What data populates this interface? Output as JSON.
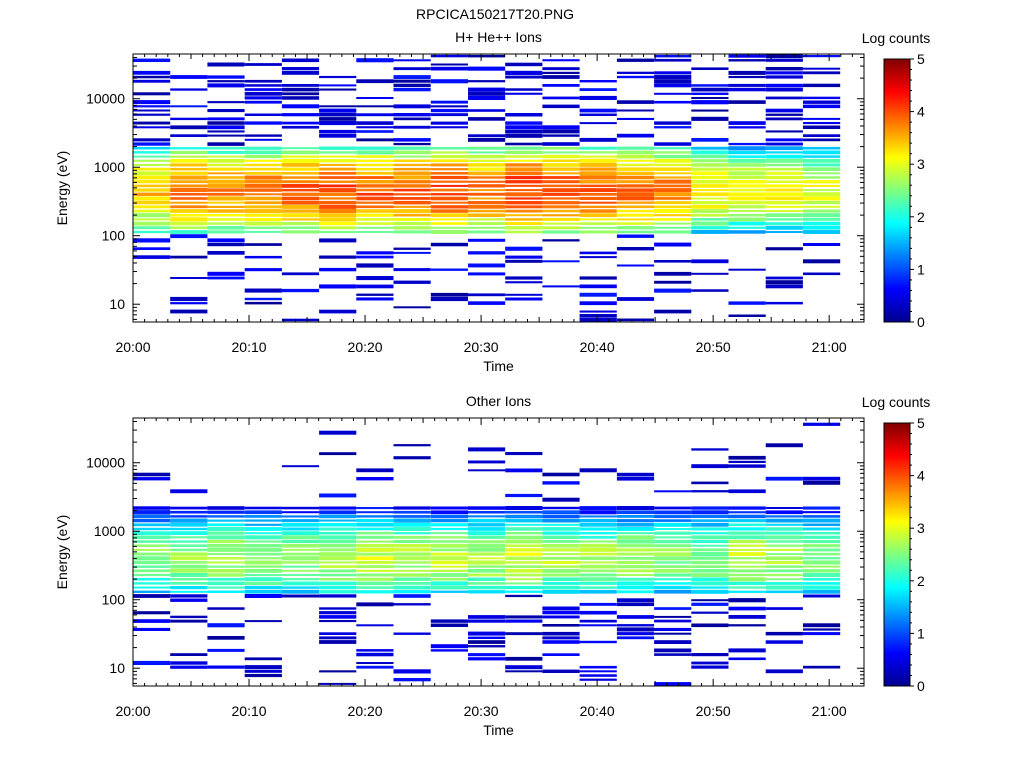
{
  "figure_title": "RPCICA150217T20.PNG",
  "chart_data": [
    {
      "type": "heatmap",
      "title": "H+ He++ Ions",
      "xlabel": "Time",
      "ylabel": "Energy (eV)",
      "x_tick_labels": [
        "20:00",
        "20:10",
        "20:20",
        "20:30",
        "20:40",
        "20:50",
        "21:00"
      ],
      "y_tick_labels": [
        "10",
        "100",
        "1000",
        "10000"
      ],
      "y_scale": "log",
      "ylim": [
        5.5,
        45000
      ],
      "xlim": [
        "20:00",
        "21:03"
      ],
      "time_bins": 19,
      "colorbar": {
        "label": "Log counts",
        "ticks": [
          "0",
          "1",
          "2",
          "3",
          "4",
          "5"
        ],
        "range": [
          0,
          5
        ],
        "colormap": "jet"
      },
      "core_profile_log_counts": [
        3.4,
        3.8,
        3.7,
        3.8,
        3.9,
        4.0,
        3.9,
        3.9,
        4.0,
        3.8,
        4.1,
        4.0,
        3.9,
        3.8,
        3.7,
        3.2,
        3.1,
        3.1,
        3.0
      ],
      "core_energy_range_eV": [
        110,
        2000
      ],
      "core_peak_energy_eV": 450
    },
    {
      "type": "heatmap",
      "title": "Other Ions",
      "xlabel": "Time",
      "ylabel": "Energy (eV)",
      "x_tick_labels": [
        "20:00",
        "20:10",
        "20:20",
        "20:30",
        "20:40",
        "20:50",
        "21:00"
      ],
      "y_tick_labels": [
        "10",
        "100",
        "1000",
        "10000"
      ],
      "y_scale": "log",
      "ylim": [
        5.5,
        45000
      ],
      "xlim": [
        "20:00",
        "21:03"
      ],
      "time_bins": 19,
      "colorbar": {
        "label": "Log counts",
        "ticks": [
          "0",
          "1",
          "2",
          "3",
          "4",
          "5"
        ],
        "range": [
          0,
          5
        ],
        "colormap": "jet"
      },
      "core_profile_log_counts": [
        2.6,
        2.6,
        2.7,
        2.7,
        2.6,
        2.8,
        2.9,
        2.8,
        2.8,
        2.8,
        2.9,
        2.8,
        2.7,
        2.7,
        2.6,
        2.6,
        2.8,
        2.7,
        2.6
      ],
      "core_energy_range_eV": [
        120,
        2200
      ],
      "core_peak_energy_eV": 400
    }
  ]
}
